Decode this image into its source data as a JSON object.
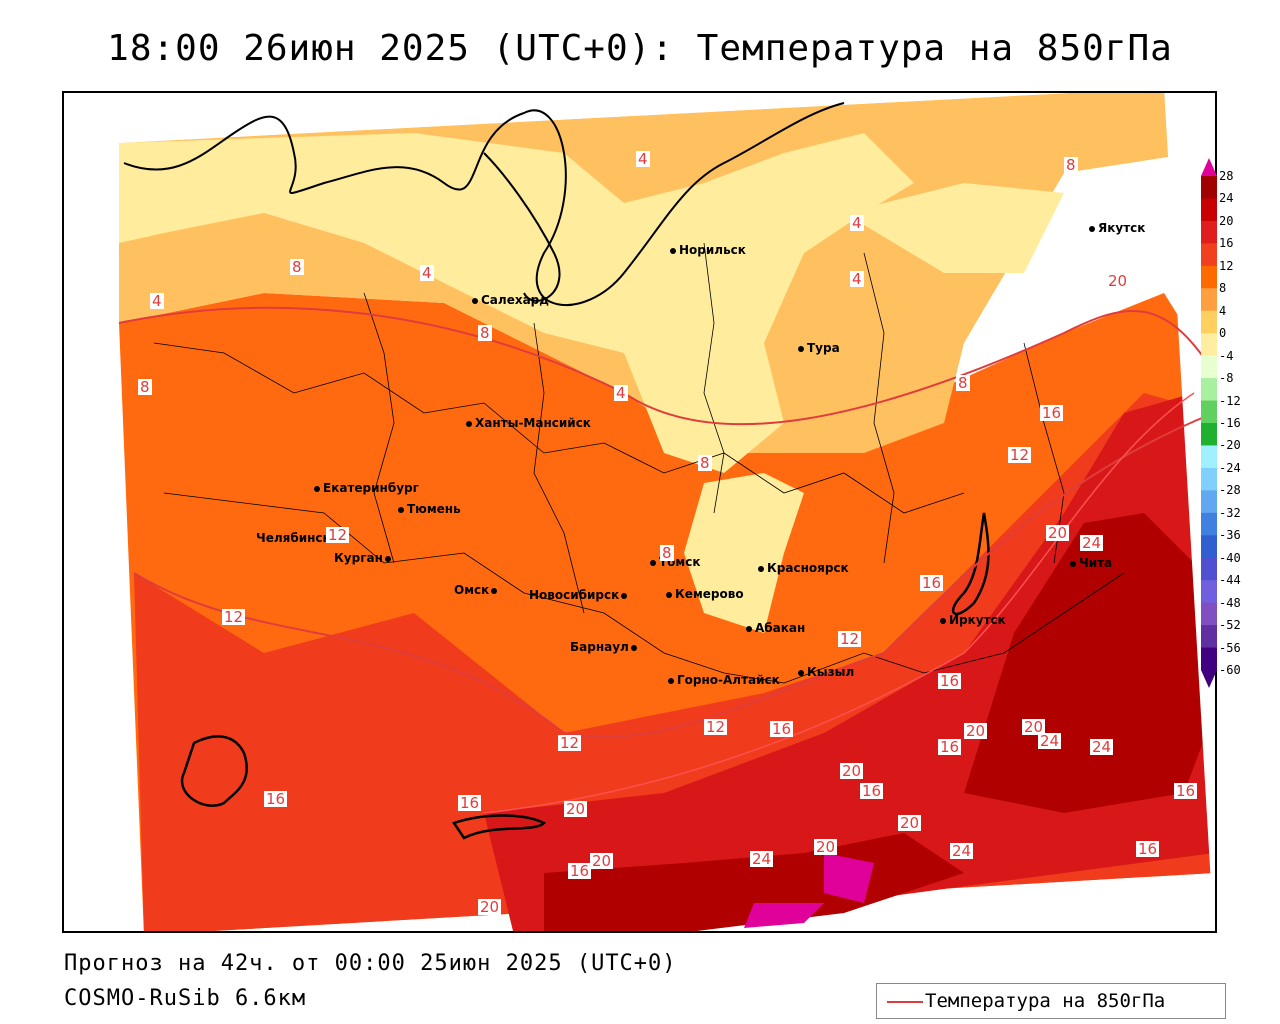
{
  "title": "18:00 26июн 2025 (UTC+0): Температура на 850гПа",
  "footer": {
    "forecast": "Прогноз на 42ч. от 00:00 25июн 2025 (UTC+0)",
    "model": "COSMO-RuSib 6.6км"
  },
  "legend": {
    "label": "Температура на 850гПа",
    "color": "#e03c3c"
  },
  "colorbar": {
    "labels": [
      "28",
      "24",
      "20",
      "16",
      "12",
      "8",
      "4",
      "0",
      "-4",
      "-8",
      "-12",
      "-16",
      "-20",
      "-24",
      "-28",
      "-32",
      "-36",
      "-40",
      "-44",
      "-48",
      "-52",
      "-56",
      "-60"
    ],
    "colors": [
      "#a00000",
      "#c80000",
      "#e01e1e",
      "#f04020",
      "#ff6a00",
      "#ffa040",
      "#ffd060",
      "#ffeea0",
      "#e8ffd0",
      "#a8f0a0",
      "#60d060",
      "#20b030",
      "#a0f0ff",
      "#80d0ff",
      "#60a8f0",
      "#4080e0",
      "#3060d0",
      "#5050d0",
      "#7060e0",
      "#8050c0",
      "#6030a0",
      "#400080"
    ]
  },
  "cities": [
    {
      "name": "Якутск"
    },
    {
      "name": "Норильск"
    },
    {
      "name": "Салехард"
    },
    {
      "name": "Тура"
    },
    {
      "name": "Ханты-Мансийск"
    },
    {
      "name": "Екатеринбург"
    },
    {
      "name": "Тюмень"
    },
    {
      "name": "Челябинск"
    },
    {
      "name": "Курган"
    },
    {
      "name": "Омск"
    },
    {
      "name": "Новосибирск"
    },
    {
      "name": "Томск"
    },
    {
      "name": "Кемерово"
    },
    {
      "name": "Красноярск"
    },
    {
      "name": "Абакан"
    },
    {
      "name": "Барнаул"
    },
    {
      "name": "Горно-Алтайск"
    },
    {
      "name": "Кызыл"
    },
    {
      "name": "Иркутск"
    },
    {
      "name": "Чита"
    }
  ],
  "isolines": [
    "4",
    "8",
    "4",
    "4",
    "8",
    "4",
    "8",
    "8",
    "4",
    "8",
    "4",
    "8",
    "16",
    "12",
    "20",
    "24",
    "20",
    "16",
    "12",
    "12",
    "12",
    "16",
    "16",
    "12",
    "16",
    "20",
    "20",
    "24",
    "24",
    "20",
    "16",
    "16",
    "20",
    "16",
    "20",
    "20",
    "24",
    "20",
    "24",
    "16",
    "20",
    "16",
    "12",
    "8",
    "16",
    "24"
  ]
}
